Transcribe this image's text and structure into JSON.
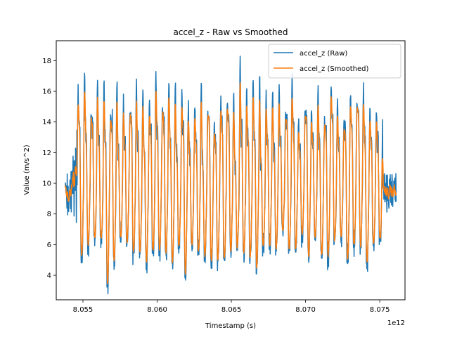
{
  "chart_data": {
    "type": "line",
    "title": "accel_z - Raw vs Smoothed",
    "xlabel": "Timestamp (s)",
    "ylabel": "Value (m/s^2)",
    "x_offset_label": "1e12",
    "xlim": [
      8.0532,
      8.0767
    ],
    "ylim": [
      2.4,
      19.3
    ],
    "xticks": [
      8.055,
      8.06,
      8.065,
      8.07,
      8.075
    ],
    "xtick_labels": [
      "8.055",
      "8.060",
      "8.065",
      "8.070",
      "8.075"
    ],
    "yticks": [
      4,
      6,
      8,
      10,
      12,
      14,
      16,
      18
    ],
    "ytick_labels": [
      "4",
      "6",
      "8",
      "10",
      "12",
      "14",
      "16",
      "18"
    ],
    "legend_position": "upper right",
    "grid": false,
    "x_start": 8.0538,
    "x_end": 8.0761,
    "active_start": 8.0546,
    "active_end": 8.0752,
    "oscillation_period": 0.000437,
    "series": [
      {
        "name": "accel_z (Raw)",
        "color": "#1f77b4",
        "baseline": 9.4,
        "peak_range": [
          14.0,
          18.4
        ],
        "trough_range": [
          3.1,
          6.3
        ],
        "notable_extremes": [
          {
            "x": 8.0656,
            "y": 18.3
          },
          {
            "x": 8.0564,
            "y": 3.1
          }
        ]
      },
      {
        "name": "accel_z (Smoothed)",
        "color": "#ff7f0e",
        "baseline": 9.4,
        "peak_range": [
          12.4,
          15.3
        ],
        "trough_range": [
          4.2,
          5.8
        ]
      }
    ]
  }
}
